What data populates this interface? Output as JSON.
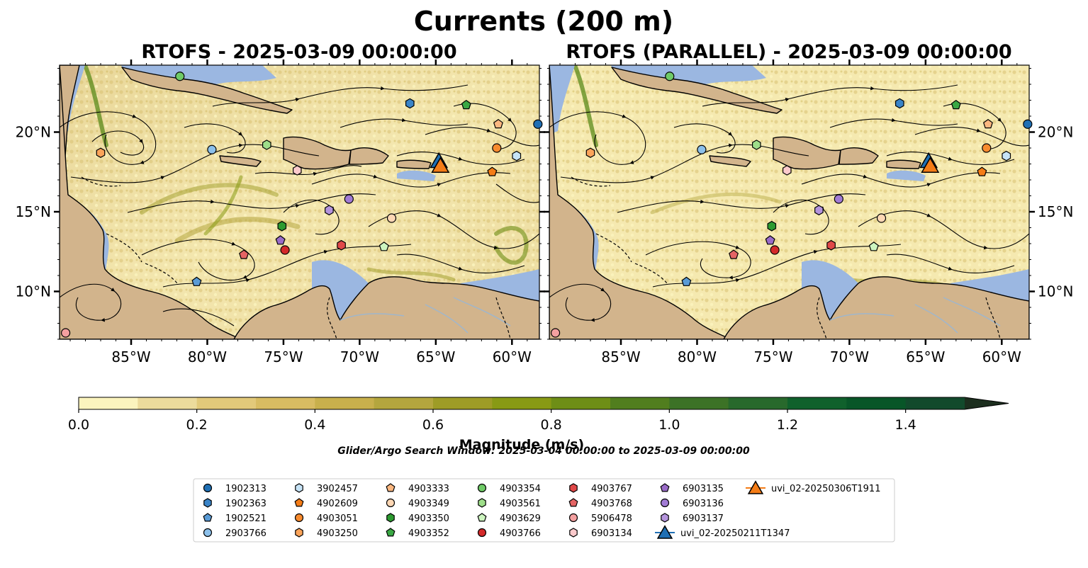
{
  "figure": {
    "title": "Currents (200 m)",
    "search_window": "Glider/Argo Search Window: 2025-03-04 00:00:00 to 2025-03-09 00:00:00"
  },
  "chart_data": [
    {
      "type": "map",
      "title": "RTOFS - 2025-03-09 00:00:00",
      "variable": "Current magnitude at 200 m",
      "x_axis": {
        "ticks": [
          "85°W",
          "80°W",
          "75°W",
          "70°W",
          "65°W",
          "60°W"
        ],
        "tick_values": [
          -85,
          -80,
          -75,
          -70,
          -65,
          -60
        ],
        "range": [
          -89.7,
          -58.2
        ]
      },
      "y_axis": {
        "ticks": [
          "10°N",
          "15°N",
          "20°N"
        ],
        "tick_values": [
          10,
          15,
          20
        ],
        "range": [
          7.0,
          24.2
        ]
      },
      "streamlines": true
    },
    {
      "type": "map",
      "title": "RTOFS (PARALLEL) - 2025-03-09 00:00:00",
      "variable": "Current magnitude at 200 m",
      "x_axis": {
        "ticks": [
          "85°W",
          "80°W",
          "75°W",
          "70°W",
          "65°W",
          "60°W"
        ],
        "tick_values": [
          -85,
          -80,
          -75,
          -70,
          -65,
          -60
        ],
        "range": [
          -89.7,
          -58.2
        ]
      },
      "y_axis": {
        "ticks": [
          "10°N",
          "15°N",
          "20°N"
        ],
        "tick_values": [
          10,
          15,
          20
        ],
        "range": [
          7.0,
          24.2
        ]
      },
      "streamlines": true
    }
  ],
  "colorbar": {
    "label": "Magnitude (m/s)",
    "ticks": [
      "0.0",
      "0.2",
      "0.4",
      "0.6",
      "0.8",
      "1.0",
      "1.2",
      "1.4"
    ],
    "tick_values": [
      0.0,
      0.2,
      0.4,
      0.6,
      0.8,
      1.0,
      1.2,
      1.4
    ],
    "range": [
      0.0,
      1.5
    ],
    "extend": "max",
    "colors": [
      "#fbf4be",
      "#ecdb9c",
      "#e2c97a",
      "#d8bc62",
      "#c8b04c",
      "#b4a63e",
      "#9e9c26",
      "#889a14",
      "#6e8e16",
      "#517e1e",
      "#3c7226",
      "#28692c",
      "#10612c",
      "#085628",
      "#124a2c",
      "#1a3a28",
      "#1c2e1e"
    ]
  },
  "map_colors": {
    "land": "#d2b48c",
    "shallow": "#9bb7e1",
    "coast": "#000000",
    "rivers": "#9fb6cc"
  },
  "floats": [
    {
      "id": "1902313",
      "marker": "circle",
      "color": "#1f6fb4",
      "lon": -58.3,
      "lat": 20.5
    },
    {
      "id": "1902363",
      "marker": "hexagon",
      "color": "#3a84c8",
      "lon": -66.7,
      "lat": 21.8
    },
    {
      "id": "1902521",
      "marker": "pentagon",
      "color": "#5a9bd6",
      "lon": -80.7,
      "lat": 10.6
    },
    {
      "id": "2903766",
      "marker": "circle",
      "color": "#8cc0ea",
      "lon": -79.7,
      "lat": 18.9
    },
    {
      "id": "3902457",
      "marker": "hexagon",
      "color": "#c6e3f6",
      "lon": -59.7,
      "lat": 18.5
    },
    {
      "id": "4902609",
      "marker": "pentagon",
      "color": "#f47c16",
      "lon": -61.3,
      "lat": 17.5
    },
    {
      "id": "4903051",
      "marker": "circle",
      "color": "#f88b2e",
      "lon": -61.0,
      "lat": 19.0
    },
    {
      "id": "4903250",
      "marker": "hexagon",
      "color": "#fba45a",
      "lon": -87.0,
      "lat": 18.7
    },
    {
      "id": "4903333",
      "marker": "pentagon",
      "color": "#fbb780",
      "lon": -60.9,
      "lat": 20.5
    },
    {
      "id": "4903349",
      "marker": "circle",
      "color": "#fdd7b4",
      "lon": -67.9,
      "lat": 14.6
    },
    {
      "id": "4903350",
      "marker": "hexagon",
      "color": "#2c9a30",
      "lon": -75.1,
      "lat": 14.1
    },
    {
      "id": "4903352",
      "marker": "pentagon",
      "color": "#3aa844",
      "lon": -63.0,
      "lat": 21.7
    },
    {
      "id": "4903354",
      "marker": "circle",
      "color": "#6fcb67",
      "lon": -81.8,
      "lat": 23.5
    },
    {
      "id": "4903561",
      "marker": "hexagon",
      "color": "#9ede8a",
      "lon": -76.1,
      "lat": 19.2
    },
    {
      "id": "4903629",
      "marker": "pentagon",
      "color": "#cdf5c0",
      "lon": -68.4,
      "lat": 12.8
    },
    {
      "id": "4903766",
      "marker": "circle",
      "color": "#d42a2a",
      "lon": -74.9,
      "lat": 12.6
    },
    {
      "id": "4903767",
      "marker": "hexagon",
      "color": "#e04848",
      "lon": -71.2,
      "lat": 12.9
    },
    {
      "id": "4903768",
      "marker": "pentagon",
      "color": "#e46464",
      "lon": -77.6,
      "lat": 12.3
    },
    {
      "id": "5906478",
      "marker": "circle",
      "color": "#f4a0a0",
      "lon": -89.3,
      "lat": 7.4
    },
    {
      "id": "6903134",
      "marker": "hexagon",
      "color": "#fccacc",
      "lon": -74.1,
      "lat": 17.6
    },
    {
      "id": "6903135",
      "marker": "pentagon",
      "color": "#9a6cc8",
      "lon": -75.2,
      "lat": 13.2
    },
    {
      "id": "6903136",
      "marker": "circle",
      "color": "#a17bd4",
      "lon": -70.7,
      "lat": 15.8
    },
    {
      "id": "6903137",
      "marker": "hexagon",
      "color": "#b494dc",
      "lon": -72.0,
      "lat": 15.1
    }
  ],
  "gliders": [
    {
      "id": "uvi_02-20250211T1347",
      "marker": "triangle",
      "color": "#1f6fb4",
      "lon": -64.8,
      "lat": 18.2
    },
    {
      "id": "uvi_02-20250306T1911",
      "marker": "triangle",
      "color": "#f47c16",
      "lon": -64.7,
      "lat": 17.9
    }
  ]
}
